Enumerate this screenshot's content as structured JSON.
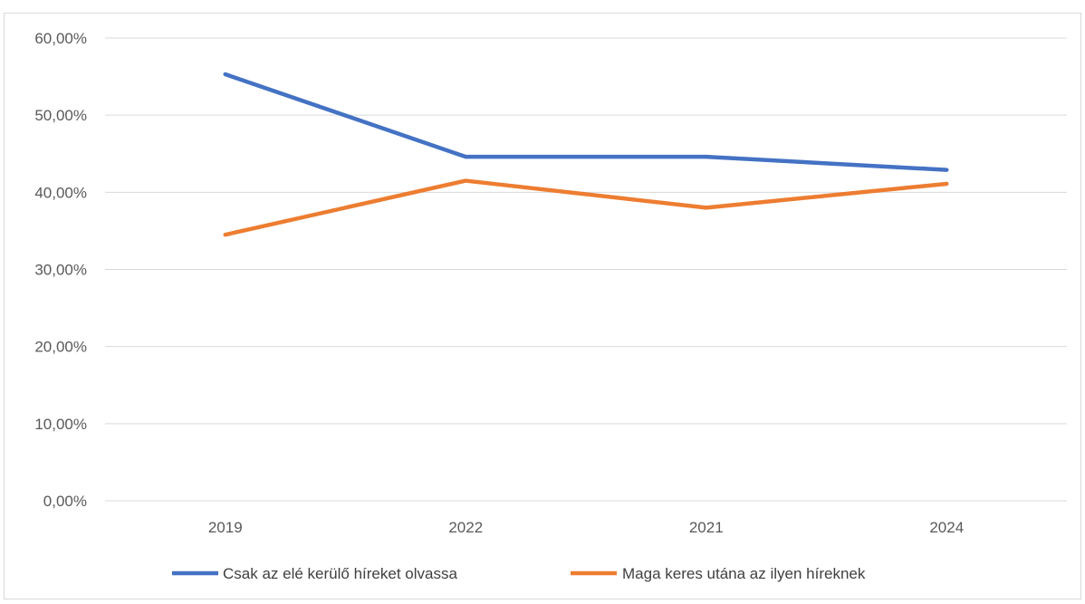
{
  "chart_data": {
    "type": "line",
    "categories": [
      "2019",
      "2022",
      "2021",
      "2024"
    ],
    "series": [
      {
        "name": "Csak az elé kerülő híreket olvassa",
        "color": "#4472c4",
        "values": [
          55.3,
          44.6,
          44.6,
          42.9
        ]
      },
      {
        "name": "Maga keres utána az ilyen híreknek",
        "color": "#ed7d31",
        "values": [
          34.5,
          41.5,
          38.0,
          41.1
        ]
      }
    ],
    "ylim": [
      0,
      60
    ],
    "yticks": [
      "0,00%",
      "10,00%",
      "20,00%",
      "30,00%",
      "40,00%",
      "50,00%",
      "60,00%"
    ],
    "grid": true,
    "legend": "bottom"
  }
}
